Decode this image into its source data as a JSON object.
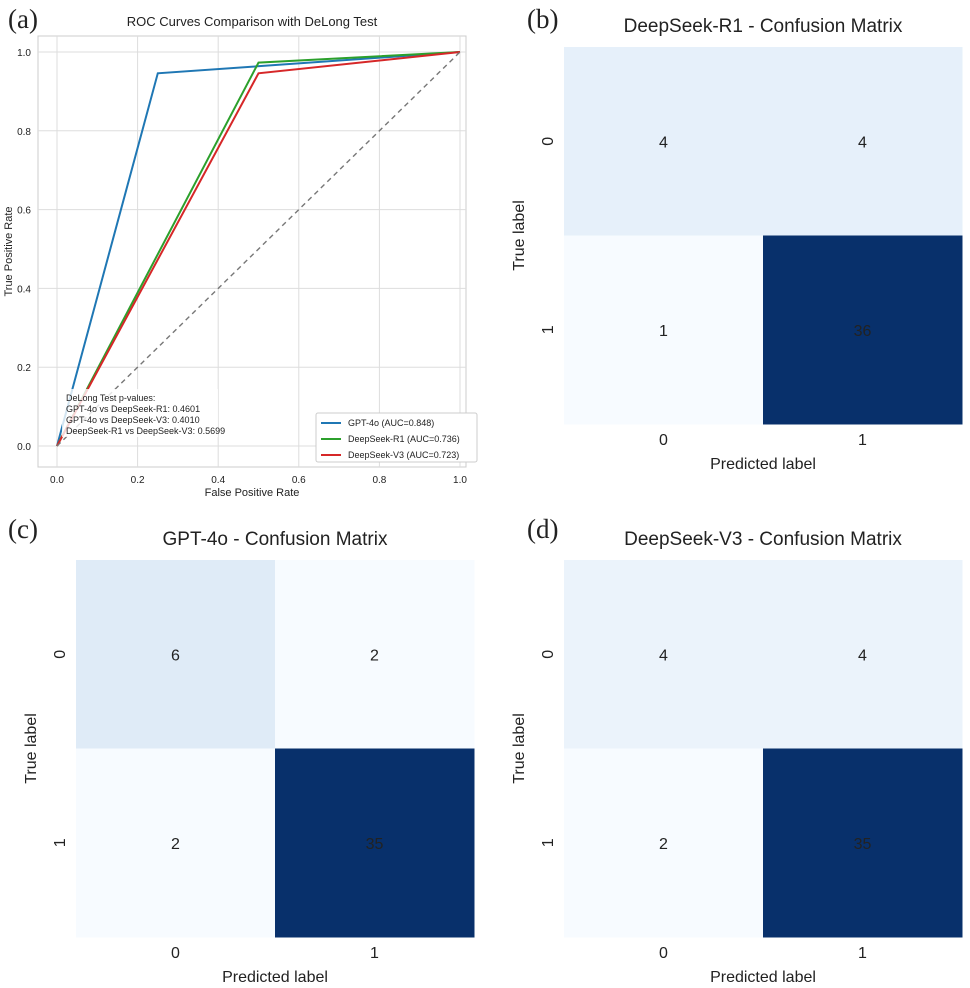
{
  "panel_labels": [
    "(a)",
    "(b)",
    "(c)",
    "(d)"
  ],
  "chart_data": [
    {
      "type": "line",
      "title": "ROC Curves Comparison with DeLong Test",
      "xlabel": "False Positive Rate",
      "ylabel": "True Positive Rate",
      "xlim": [
        0.0,
        1.0
      ],
      "ylim": [
        0.0,
        1.0
      ],
      "xticks": [
        "0.0",
        "0.2",
        "0.4",
        "0.6",
        "0.8",
        "1.0"
      ],
      "yticks": [
        "0.0",
        "0.2",
        "0.4",
        "0.6",
        "0.8",
        "1.0"
      ],
      "grid": true,
      "legend_position": "lower-right",
      "series": [
        {
          "name": "GPT-4o (AUC=0.848)",
          "color": "#1f77b4",
          "x": [
            0.0,
            0.25,
            1.0
          ],
          "y": [
            0.0,
            0.946,
            1.0
          ]
        },
        {
          "name": "DeepSeek-R1 (AUC=0.736)",
          "color": "#2ca02c",
          "x": [
            0.0,
            0.5,
            1.0
          ],
          "y": [
            0.0,
            0.973,
            1.0
          ]
        },
        {
          "name": "DeepSeek-V3 (AUC=0.723)",
          "color": "#d62728",
          "x": [
            0.0,
            0.5,
            1.0
          ],
          "y": [
            0.0,
            0.946,
            1.0
          ]
        },
        {
          "name": "",
          "color": "#777777",
          "dashed": true,
          "x": [
            0.0,
            1.0
          ],
          "y": [
            0.0,
            1.0
          ]
        }
      ],
      "annotation": [
        "DeLong Test p-values:",
        "GPT-4o vs DeepSeek-R1: 0.4601",
        "GPT-4o vs DeepSeek-V3: 0.4010",
        "DeepSeek-R1 vs DeepSeek-V3: 0.5699"
      ]
    },
    {
      "type": "heatmap",
      "title": "DeepSeek-R1 - Confusion Matrix",
      "xlabel": "Predicted label",
      "ylabel": "True label",
      "x_categories": [
        "0",
        "1"
      ],
      "y_categories": [
        "0",
        "1"
      ],
      "values": [
        [
          4,
          4
        ],
        [
          1,
          36
        ]
      ],
      "colormap": "Blues"
    },
    {
      "type": "heatmap",
      "title": "GPT-4o - Confusion Matrix",
      "xlabel": "Predicted label",
      "ylabel": "True label",
      "x_categories": [
        "0",
        "1"
      ],
      "y_categories": [
        "0",
        "1"
      ],
      "values": [
        [
          6,
          2
        ],
        [
          2,
          35
        ]
      ],
      "colormap": "Blues"
    },
    {
      "type": "heatmap",
      "title": "DeepSeek-V3 - Confusion Matrix",
      "xlabel": "Predicted label",
      "ylabel": "True label",
      "x_categories": [
        "0",
        "1"
      ],
      "y_categories": [
        "0",
        "1"
      ],
      "values": [
        [
          4,
          4
        ],
        [
          2,
          35
        ]
      ],
      "colormap": "Blues"
    }
  ]
}
